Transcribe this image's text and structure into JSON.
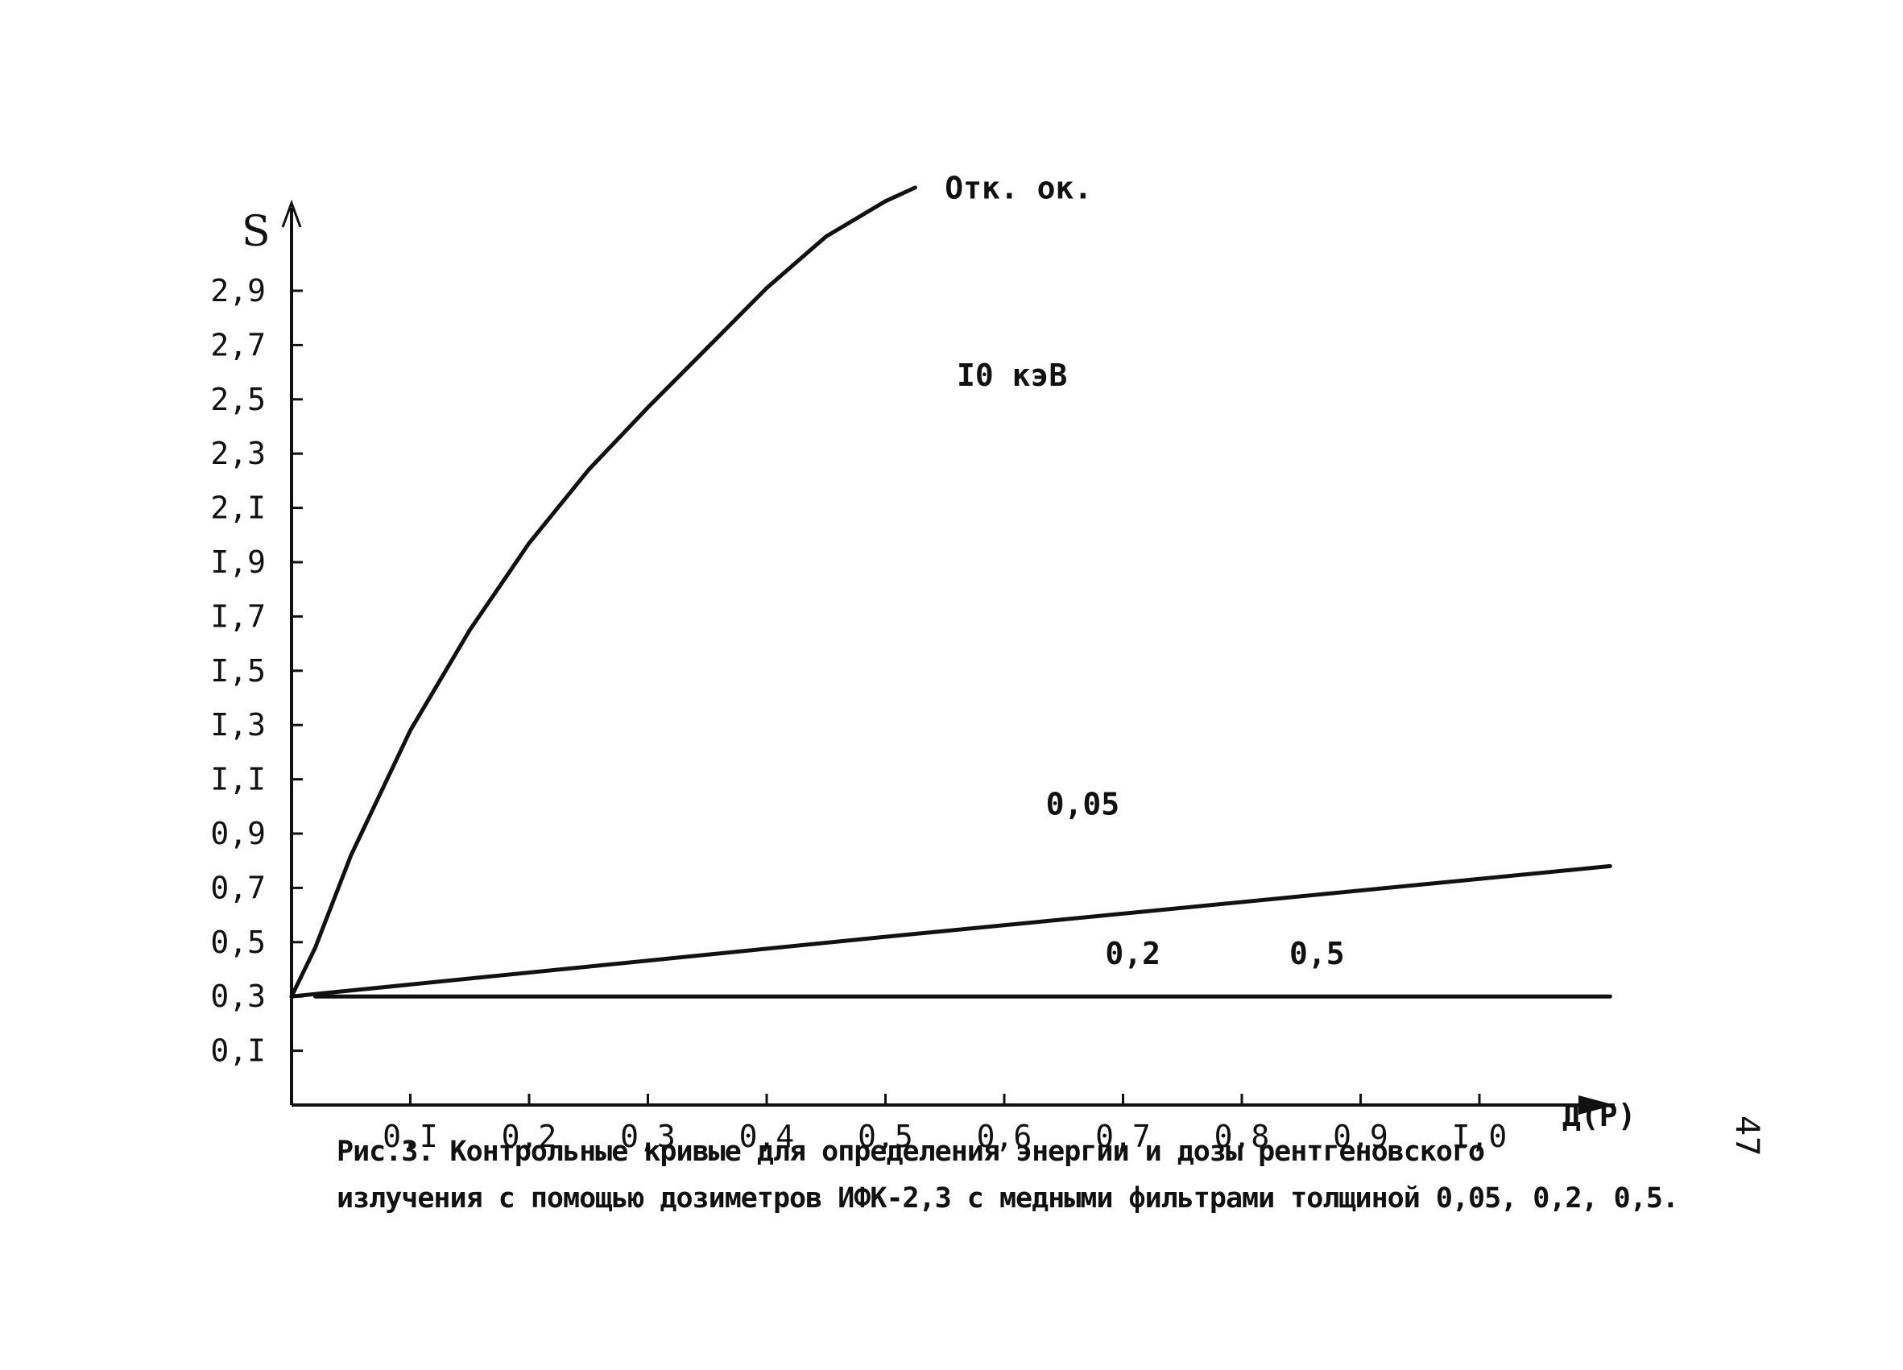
{
  "chart_data": {
    "type": "line",
    "title": "",
    "xlabel": "Д(Р)",
    "ylabel": "S",
    "xlim": [
      0,
      1.11
    ],
    "ylim": [
      -0.1,
      3.2
    ],
    "x_ticks": [
      {
        "value": 0.1,
        "label": "0,I"
      },
      {
        "value": 0.2,
        "label": "0,2"
      },
      {
        "value": 0.3,
        "label": "0,3"
      },
      {
        "value": 0.4,
        "label": "0,4"
      },
      {
        "value": 0.5,
        "label": "0,5"
      },
      {
        "value": 0.6,
        "label": "0,6"
      },
      {
        "value": 0.7,
        "label": "0,7"
      },
      {
        "value": 0.8,
        "label": "0,8"
      },
      {
        "value": 0.9,
        "label": "0,9"
      },
      {
        "value": 1.0,
        "label": "I,0"
      }
    ],
    "y_ticks": [
      {
        "value": 0.1,
        "label": "0,I"
      },
      {
        "value": 0.3,
        "label": "0,3"
      },
      {
        "value": 0.5,
        "label": "0,5"
      },
      {
        "value": 0.7,
        "label": "0,7"
      },
      {
        "value": 0.9,
        "label": "0,9"
      },
      {
        "value": 1.1,
        "label": "I,I"
      },
      {
        "value": 1.3,
        "label": "I,3"
      },
      {
        "value": 1.5,
        "label": "I,5"
      },
      {
        "value": 1.7,
        "label": "I,7"
      },
      {
        "value": 1.9,
        "label": "I,9"
      },
      {
        "value": 2.1,
        "label": "2,I"
      },
      {
        "value": 2.3,
        "label": "2,3"
      },
      {
        "value": 2.5,
        "label": "2,5"
      },
      {
        "value": 2.7,
        "label": "2,7"
      },
      {
        "value": 2.9,
        "label": "2,9"
      }
    ],
    "series": [
      {
        "name": "Отк. ок.",
        "x": [
          0.0,
          0.02,
          0.05,
          0.1,
          0.15,
          0.2,
          0.25,
          0.3,
          0.35,
          0.4,
          0.45,
          0.5,
          0.525
        ],
        "y": [
          0.3,
          0.48,
          0.82,
          1.28,
          1.65,
          1.97,
          2.24,
          2.47,
          2.69,
          2.91,
          3.1,
          3.23,
          3.28
        ]
      },
      {
        "name": "0,05",
        "x": [
          0.0,
          0.5,
          1.11
        ],
        "y": [
          0.3,
          0.52,
          0.78
        ]
      },
      {
        "name": "0,2",
        "x": [
          0.02,
          1.11
        ],
        "y": [
          0.3,
          0.3
        ]
      }
    ],
    "annotations": [
      {
        "text": "I0 кэВ",
        "x": 0.56,
        "y": 2.55
      },
      {
        "text": "0,5",
        "x": 0.84,
        "y": 0.42
      }
    ],
    "grid": false,
    "legend": "none"
  },
  "caption": {
    "line1": "Рис.3. Контрольные кривые для определения энергии и дозы рентгеновского",
    "line2": "излучения с помощью дозиметров ИФК-2,3 с медными фильтрами толщиной 0,05, 0,2, 0,5."
  },
  "page_number": "47"
}
